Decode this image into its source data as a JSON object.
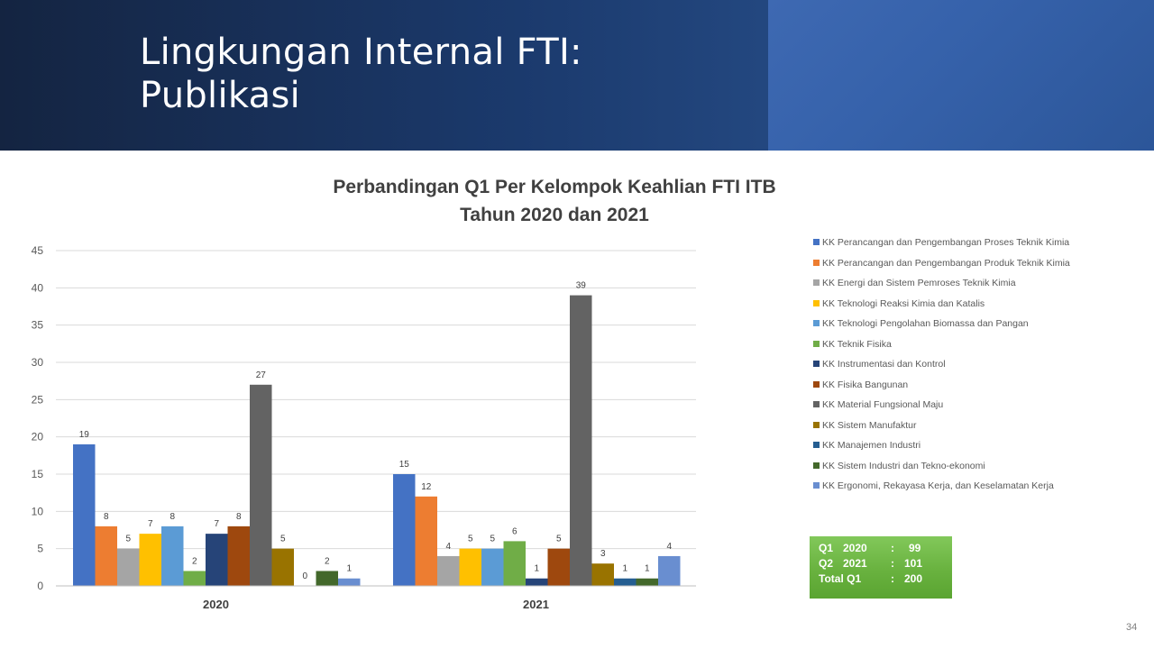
{
  "slide": {
    "title_line1": "Lingkungan Internal FTI:",
    "title_line2": "Publikasi",
    "page_number": "34"
  },
  "colors": {
    "header_dark": "#142441",
    "header_light": "#3e69b2",
    "summary_box": "#6cb544"
  },
  "chart_data": {
    "type": "bar",
    "title_line1": "Perbandingan Q1 Per Kelompok Keahlian FTI ITB",
    "title_line2": "Tahun 2020 dan 2021",
    "categories": [
      "2020",
      "2021"
    ],
    "ylim": [
      0,
      45
    ],
    "yticks": [
      0,
      5,
      10,
      15,
      20,
      25,
      30,
      35,
      40,
      45
    ],
    "grid": true,
    "legend_position": "right",
    "series": [
      {
        "name": "KK Perancangan dan Pengembangan Proses Teknik Kimia",
        "color": "#4472c4",
        "values": [
          19,
          15
        ]
      },
      {
        "name": "KK Perancangan dan Pengembangan Produk Teknik Kimia",
        "color": "#ed7d31",
        "values": [
          8,
          12
        ]
      },
      {
        "name": "KK Energi dan Sistem Pemroses Teknik Kimia",
        "color": "#a5a5a5",
        "values": [
          5,
          4
        ]
      },
      {
        "name": "KK Teknologi Reaksi Kimia dan Katalis",
        "color": "#ffc000",
        "values": [
          7,
          5
        ]
      },
      {
        "name": "KK Teknologi Pengolahan Biomassa dan Pangan",
        "color": "#5b9bd5",
        "values": [
          8,
          5
        ]
      },
      {
        "name": "KK Teknik Fisika",
        "color": "#70ad47",
        "values": [
          2,
          6
        ]
      },
      {
        "name": "KK Instrumentasi dan Kontrol",
        "color": "#264478",
        "values": [
          7,
          1
        ]
      },
      {
        "name": "KK Fisika Bangunan",
        "color": "#9e480e",
        "values": [
          8,
          5
        ]
      },
      {
        "name": "KK Material Fungsional Maju",
        "color": "#636363",
        "values": [
          27,
          39
        ]
      },
      {
        "name": "KK Sistem Manufaktur",
        "color": "#997300",
        "values": [
          5,
          3
        ]
      },
      {
        "name": "KK Manajemen Industri",
        "color": "#255e91",
        "values": [
          0,
          1
        ]
      },
      {
        "name": "KK Sistem Industri dan Tekno-ekonomi",
        "color": "#43682b",
        "values": [
          2,
          1
        ]
      },
      {
        "name": "KK Ergonomi, Rekayasa Kerja, dan Keselamatan Kerja",
        "color": "#698ed0",
        "values": [
          1,
          4
        ]
      }
    ]
  },
  "summary": {
    "rows": [
      {
        "label": "Q1",
        "year": "2020",
        "sep": ":",
        "value": "99"
      },
      {
        "label": "Q2",
        "year": "2021",
        "sep": ":",
        "value": "101"
      },
      {
        "label": "Total Q1",
        "year": "",
        "sep": ":",
        "value": "200"
      }
    ]
  }
}
